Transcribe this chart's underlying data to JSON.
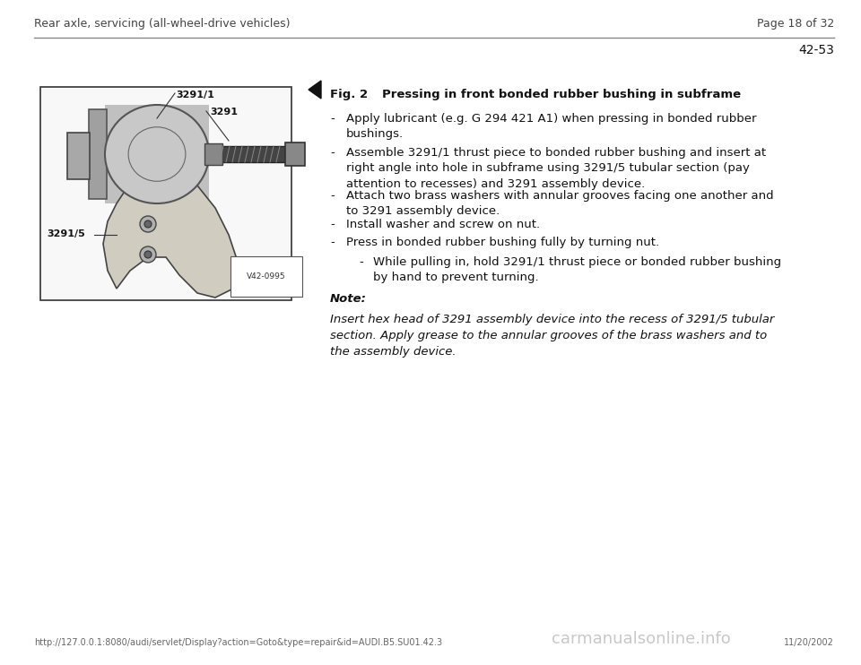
{
  "bg_color": "#ffffff",
  "header_left": "Rear axle, servicing (all-wheel-drive vehicles)",
  "header_right": "Page 18 of 32",
  "page_number": "42-53",
  "footer_left": "http://127.0.0.1:8080/audi/servlet/Display?action=Goto&type=repair&id=AUDI.B5.SU01.42.3",
  "footer_right": "11/20/2002",
  "footer_watermark": "carmanualsonline.info",
  "fig2_title_part1": "Fig. 2",
  "fig2_title_part2": "Pressing in front bonded rubber bushing in subframe",
  "bullet1_dash": "-",
  "bullet1_text": "Apply lubricant (e.g. G 294 421 A1) when pressing in bonded rubber\nbushings.",
  "bullet2_dash": "-",
  "bullet2_text": "Assemble 3291/1 thrust piece to bonded rubber bushing and insert at\nright angle into hole in subframe using 3291/5 tubular section (pay\nattention to recesses) and 3291 assembly device.",
  "bullet3_dash": "-",
  "bullet3_text": "Attach two brass washers with annular grooves facing one another and\nto 3291 assembly device.",
  "bullet4_dash": "-",
  "bullet4_text": "Install washer and screw on nut.",
  "bullet5_dash": "-",
  "bullet5_text": "Press in bonded rubber bushing fully by turning nut.",
  "sub_bullet_dash": "-",
  "sub_bullet_text": "While pulling in, hold 3291/1 thrust piece or bonded rubber bushing\nby hand to prevent turning.",
  "note_label": "Note:",
  "note_text": "Insert hex head of 3291 assembly device into the recess of 3291/5 tubular\nsection. Apply grease to the annular grooves of the brass washers and to\nthe assembly device.",
  "img_label_top": "3291/1",
  "img_label_mid": "3291",
  "img_label_bot": "3291/5",
  "img_watermark": "V42-0995",
  "text_color": "#111111",
  "header_color": "#444444",
  "line_color": "#888888"
}
